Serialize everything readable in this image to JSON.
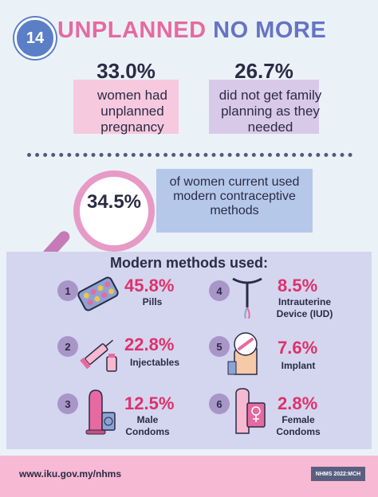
{
  "header": {
    "number": "14",
    "title_part1": "UNPLANNED",
    "title_part2": "NO MORE"
  },
  "stats": [
    {
      "value": "33.0%",
      "description": "women had unplanned pregnancy"
    },
    {
      "value": "26.7%",
      "description": "did not get family planning as they needed"
    }
  ],
  "modern_use": {
    "value": "34.5%",
    "description": "of women current used modern contraceptive methods"
  },
  "methods": {
    "title": "Modern methods used:",
    "items": [
      {
        "number": "1",
        "percent": "45.8%",
        "label": "Pills",
        "icon": "pill-pack-icon"
      },
      {
        "number": "2",
        "percent": "22.8%",
        "label": "Injectables",
        "icon": "syringe-icon"
      },
      {
        "number": "3",
        "percent": "12.5%",
        "label": "Male Condoms",
        "icon": "male-condom-icon"
      },
      {
        "number": "4",
        "percent": "8.5%",
        "label": "Intrauterine Device (IUD)",
        "icon": "iud-icon"
      },
      {
        "number": "5",
        "percent": "7.6%",
        "label": "Implant",
        "icon": "implant-icon"
      },
      {
        "number": "6",
        "percent": "2.8%",
        "label": "Female Condoms",
        "icon": "female-condom-icon"
      }
    ]
  },
  "footer": {
    "url": "www.iku.gov.my/nhms",
    "badge": "NHMS 2022:MCH"
  },
  "colors": {
    "pink_accent": "#e66aa0",
    "blue_accent": "#6674c4",
    "percent_red": "#e0306c",
    "panel": "#d3d6ee",
    "footer": "#f7b9d3"
  }
}
